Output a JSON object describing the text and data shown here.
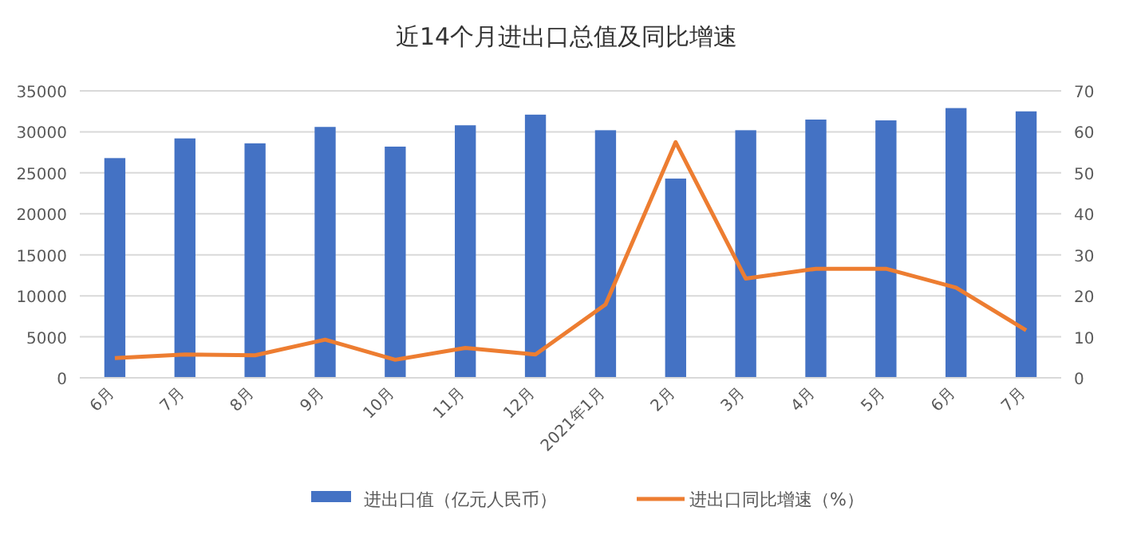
{
  "chart_data": {
    "type": "bar",
    "title": "近14个月进出口总值及同比增速",
    "categories": [
      "6月",
      "7月",
      "8月",
      "9月",
      "10月",
      "11月",
      "12月",
      "2021年1月",
      "2月",
      "3月",
      "4月",
      "5月",
      "6月",
      "7月"
    ],
    "series": [
      {
        "name": "进出口值（亿元人民币）",
        "color": "#4472c4",
        "values": [
          26800,
          29200,
          28600,
          30600,
          28200,
          30800,
          32100,
          30200,
          24300,
          30200,
          31500,
          31400,
          32900,
          32500
        ]
      },
      {
        "name": "进出口同比增速（%）",
        "type": "line",
        "axis": "y2",
        "color": "#ed7d31",
        "values": [
          4.8,
          5.7,
          5.5,
          9.3,
          4.4,
          7.3,
          5.7,
          17.9,
          57.5,
          24.2,
          26.6,
          26.6,
          22.0,
          11.6
        ]
      }
    ],
    "ylim": [
      0,
      35000
    ],
    "yticks": [
      0,
      5000,
      10000,
      15000,
      20000,
      25000,
      30000,
      35000
    ],
    "y2lim": [
      0,
      70
    ],
    "y2ticks": [
      0,
      10,
      20,
      30,
      40,
      50,
      60,
      70
    ],
    "grid": "y",
    "legend": "bottom"
  }
}
